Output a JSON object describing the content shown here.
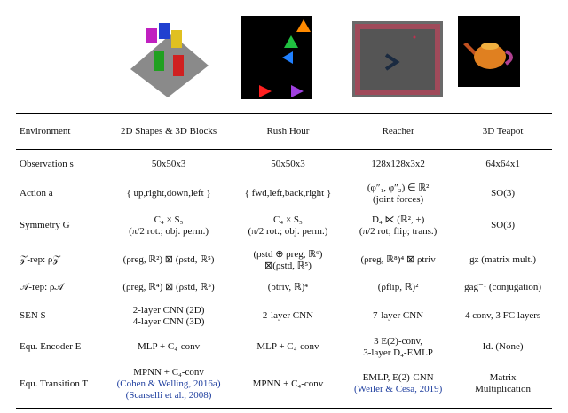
{
  "table": {
    "header": [
      "Environment",
      "2D Shapes & 3D Blocks",
      "Rush Hour",
      "Reacher",
      "3D Teapot"
    ],
    "rows": [
      [
        "Observation s",
        "50x50x3",
        "50x50x3",
        "128x128x3x2",
        "64x64x1"
      ],
      [
        "Action a",
        "{ up,right,down,left }",
        "{ fwd,left,back,right }",
        [
          "(φ″₁, φ″₂) ∈ ℝ²",
          "(joint forces)"
        ],
        "SO(3)"
      ],
      [
        "Symmetry G",
        [
          "C₄ × S₅",
          "(π/2 rot.; obj. perm.)"
        ],
        [
          "C₄ × S₅",
          "(π/2 rot.; obj. perm.)"
        ],
        [
          "D₄ ⋉ (ℝ², +)",
          "(π/2 rot; flip; trans.)"
        ],
        "SO(3)"
      ],
      [
        "𝒵-rep: ρ𝒵",
        "(ρreg, ℝ²) ⊠ (ρstd, ℝ⁵)",
        [
          "(ρstd ⊕ ρreg, ℝ⁶)",
          "⊠(ρstd, ℝ⁵)"
        ],
        "(ρreg, ℝ⁸)⁴ ⊠ ρtriv",
        "gz (matrix mult.)"
      ],
      [
        "𝒜-rep: ρ𝒜",
        "(ρreg, ℝ⁴) ⊠ (ρstd, ℝ⁵)",
        "(ρtriv, ℝ)⁴",
        "(ρflip, ℝ)²",
        "gag⁻¹ (conjugation)"
      ],
      [
        "SEN S",
        [
          "2-layer CNN (2D)",
          "4-layer CNN (3D)"
        ],
        "2-layer CNN",
        "7-layer CNN",
        "4 conv, 3 FC layers"
      ],
      [
        "Equ. Encoder E",
        "MLP + C₄-conv",
        "MLP + C₄-conv",
        [
          "3 E(2)-conv,",
          "3-layer D₄-EMLP"
        ],
        "Id. (None)"
      ],
      [
        "Equ. Transition T",
        {
          "lines": [
            "MPNN + C₄-conv"
          ],
          "citations": [
            "(Cohen & Welling, 2016a)",
            "(Scarselli et al., 2008)"
          ]
        },
        "MPNN + C₄-conv",
        {
          "lines": [
            "EMLP, E(2)-CNN"
          ],
          "citations": [
            "(Weiler & Cesa, 2019)"
          ]
        },
        [
          "Matrix",
          "Multiplication"
        ]
      ]
    ]
  }
}
